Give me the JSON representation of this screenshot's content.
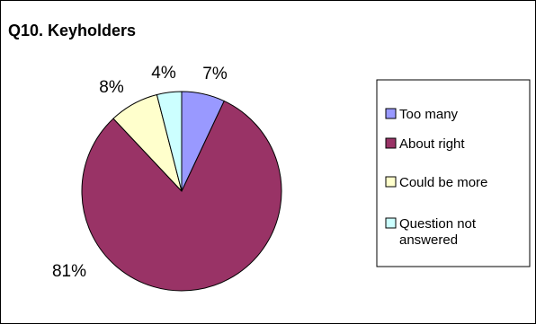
{
  "chart_data": {
    "type": "pie",
    "title": "Q10. Keyholders",
    "categories": [
      "Too many",
      "About right",
      "Could be more",
      "Question not answered"
    ],
    "values": [
      7,
      81,
      8,
      4
    ],
    "value_labels": [
      "7%",
      "81%",
      "8%",
      "4%"
    ],
    "colors": [
      "#9999ff",
      "#993366",
      "#ffffcc",
      "#ccffff"
    ],
    "legend_lines": [
      [
        "Too many"
      ],
      [
        "About right"
      ],
      [
        "Could be more"
      ],
      [
        "Question not",
        "answered"
      ]
    ],
    "legend_position": "right"
  }
}
